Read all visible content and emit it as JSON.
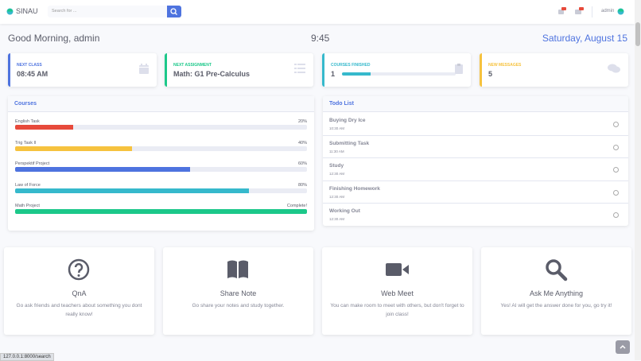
{
  "navbar": {
    "brand": "SINAU",
    "search_placeholder": "Search for ...",
    "user": "admin"
  },
  "greeting": {
    "message": "Good Morning, admin",
    "time": "9:45",
    "date": "Saturday, August 15"
  },
  "summary_cards": [
    {
      "label": "NEXT CLASS",
      "value": "08:45 AM"
    },
    {
      "label": "NEXT ASSIGNMENT",
      "value": "Math: G1 Pre-Calculus"
    },
    {
      "label": "COURSES FINISHED",
      "value": 1,
      "progress": 25
    },
    {
      "label": "NEW MESSAGES",
      "value": 5
    }
  ],
  "courses": {
    "title": "Courses",
    "items": [
      {
        "name": "English Task",
        "progress": {
          "value": 20,
          "label": "20%"
        }
      },
      {
        "name": "Trig Task II",
        "progress": {
          "value": 40,
          "label": "40%"
        }
      },
      {
        "name": "Perspektif Project",
        "progress": {
          "value": 60,
          "label": "60%"
        }
      },
      {
        "name": "Law of Force",
        "progress": {
          "value": 80,
          "label": "80%"
        }
      },
      {
        "name": "Math Project",
        "progress": {
          "value": 100,
          "label": "Complete!"
        }
      }
    ]
  },
  "todo": {
    "title": "Todo List",
    "items": [
      {
        "task": "Buying Dry Ice",
        "time": "10:30 AM"
      },
      {
        "task": "Submitting Task",
        "time": "11:30 AM"
      },
      {
        "task": "Study",
        "time": "12:30 AM"
      },
      {
        "task": "Finishing Homework",
        "time": "12:30 AM"
      },
      {
        "task": "Working Out",
        "time": "12:30 AM"
      }
    ]
  },
  "features": [
    {
      "title": "QnA",
      "description": "Go ask friends and teachers about something you dont really know!"
    },
    {
      "title": "Share Note",
      "description": "Go share your notes and study together."
    },
    {
      "title": "Web Meet",
      "description": "You can make room to meet with others, but don't forget to join class!"
    },
    {
      "title": "Ask Me Anything",
      "description": "Yes! AI will get the answer done for you, go try it!"
    }
  ],
  "status_bar": "127.0.0.1:8000/search"
}
